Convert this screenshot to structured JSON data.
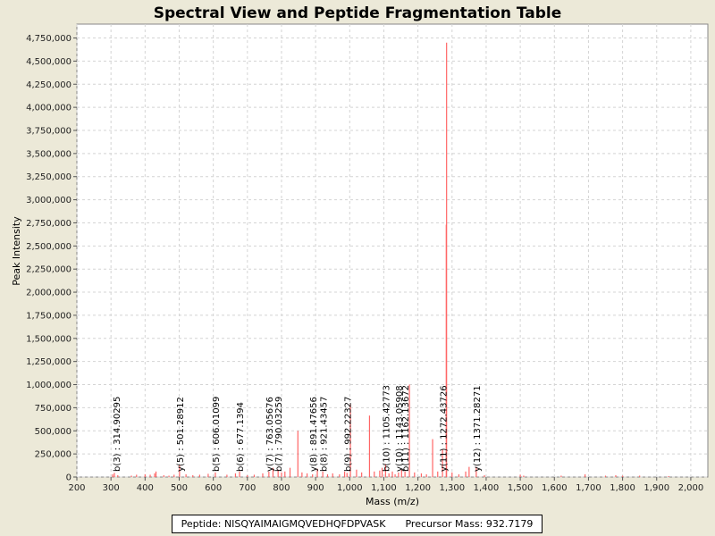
{
  "chart_data": {
    "type": "bar",
    "title": "Spectral View and Peptide Fragmentation Table",
    "xlabel": "Mass (m/z)",
    "ylabel": "Peak Intensity",
    "xlim": [
      200,
      2050
    ],
    "ylim": [
      0,
      4900000
    ],
    "xticks": [
      200,
      300,
      400,
      500,
      600,
      700,
      800,
      900,
      1000,
      1100,
      1200,
      1300,
      1400,
      1500,
      1600,
      1700,
      1800,
      1900,
      2000
    ],
    "xtick_labels": [
      "200",
      "300",
      "400",
      "500",
      "600",
      "700",
      "800",
      "900",
      "1,000",
      "1,100",
      "1,200",
      "1,300",
      "1,400",
      "1,500",
      "1,600",
      "1,700",
      "1,800",
      "1,900",
      "2,000"
    ],
    "yticks": [
      0,
      250000,
      500000,
      750000,
      1000000,
      1250000,
      1500000,
      1750000,
      2000000,
      2250000,
      2500000,
      2750000,
      3000000,
      3250000,
      3500000,
      3750000,
      4000000,
      4250000,
      4500000,
      4750000
    ],
    "ytick_labels": [
      "0",
      "250,000",
      "500,000",
      "750,000",
      "1,000,000",
      "1,250,000",
      "1,500,000",
      "1,750,000",
      "2,000,000",
      "2,250,000",
      "2,500,000",
      "2,750,000",
      "3,000,000",
      "3,250,000",
      "3,500,000",
      "3,750,000",
      "4,000,000",
      "4,250,000",
      "4,500,000",
      "4,750,000"
    ],
    "grid": true,
    "peak_color": "#ff6666",
    "peaks": [
      {
        "x": 305,
        "y": 30000
      },
      {
        "x": 310,
        "y": 45000
      },
      {
        "x": 320,
        "y": 20000
      },
      {
        "x": 360,
        "y": 15000
      },
      {
        "x": 375,
        "y": 25000
      },
      {
        "x": 400,
        "y": 30000
      },
      {
        "x": 415,
        "y": 25000
      },
      {
        "x": 428,
        "y": 40000
      },
      {
        "x": 432,
        "y": 60000
      },
      {
        "x": 455,
        "y": 20000
      },
      {
        "x": 470,
        "y": 15000
      },
      {
        "x": 485,
        "y": 25000
      },
      {
        "x": 501,
        "y": 130000
      },
      {
        "x": 520,
        "y": 30000
      },
      {
        "x": 540,
        "y": 20000
      },
      {
        "x": 560,
        "y": 25000
      },
      {
        "x": 585,
        "y": 35000
      },
      {
        "x": 606,
        "y": 50000
      },
      {
        "x": 640,
        "y": 25000
      },
      {
        "x": 665,
        "y": 40000
      },
      {
        "x": 677,
        "y": 60000
      },
      {
        "x": 700,
        "y": 20000
      },
      {
        "x": 720,
        "y": 25000
      },
      {
        "x": 745,
        "y": 40000
      },
      {
        "x": 763,
        "y": 60000
      },
      {
        "x": 775,
        "y": 100000
      },
      {
        "x": 790,
        "y": 80000
      },
      {
        "x": 800,
        "y": 50000
      },
      {
        "x": 810,
        "y": 60000
      },
      {
        "x": 825,
        "y": 100000
      },
      {
        "x": 848,
        "y": 500000
      },
      {
        "x": 860,
        "y": 50000
      },
      {
        "x": 875,
        "y": 40000
      },
      {
        "x": 891,
        "y": 30000
      },
      {
        "x": 905,
        "y": 90000
      },
      {
        "x": 921,
        "y": 60000
      },
      {
        "x": 935,
        "y": 30000
      },
      {
        "x": 950,
        "y": 40000
      },
      {
        "x": 970,
        "y": 30000
      },
      {
        "x": 985,
        "y": 60000
      },
      {
        "x": 992,
        "y": 45000
      },
      {
        "x": 1002,
        "y": 790000
      },
      {
        "x": 1020,
        "y": 80000
      },
      {
        "x": 1035,
        "y": 50000
      },
      {
        "x": 1058,
        "y": 665000
      },
      {
        "x": 1072,
        "y": 60000
      },
      {
        "x": 1088,
        "y": 70000
      },
      {
        "x": 1095,
        "y": 100000
      },
      {
        "x": 1105,
        "y": 140000
      },
      {
        "x": 1115,
        "y": 40000
      },
      {
        "x": 1125,
        "y": 60000
      },
      {
        "x": 1133,
        "y": 30000
      },
      {
        "x": 1143,
        "y": 50000
      },
      {
        "x": 1152,
        "y": 80000
      },
      {
        "x": 1162,
        "y": 60000
      },
      {
        "x": 1175,
        "y": 1000000
      },
      {
        "x": 1190,
        "y": 50000
      },
      {
        "x": 1210,
        "y": 40000
      },
      {
        "x": 1225,
        "y": 30000
      },
      {
        "x": 1243,
        "y": 410000
      },
      {
        "x": 1258,
        "y": 60000
      },
      {
        "x": 1272,
        "y": 300000
      },
      {
        "x": 1283,
        "y": 2730000
      },
      {
        "x": 1284,
        "y": 4700000
      },
      {
        "x": 1300,
        "y": 50000
      },
      {
        "x": 1320,
        "y": 30000
      },
      {
        "x": 1340,
        "y": 60000
      },
      {
        "x": 1350,
        "y": 110000
      },
      {
        "x": 1371,
        "y": 110000
      },
      {
        "x": 1395,
        "y": 20000
      },
      {
        "x": 1500,
        "y": 25000
      },
      {
        "x": 1510,
        "y": 15000
      },
      {
        "x": 1620,
        "y": 15000
      },
      {
        "x": 1690,
        "y": 30000
      },
      {
        "x": 1750,
        "y": 15000
      },
      {
        "x": 1780,
        "y": 20000
      },
      {
        "x": 1800,
        "y": 15000
      },
      {
        "x": 1850,
        "y": 15000
      },
      {
        "x": 1935,
        "y": 10000
      }
    ],
    "annotations": [
      {
        "x": 314.90295,
        "y": 30000,
        "text": "b(3) : 314.90295"
      },
      {
        "x": 501.28912,
        "y": 130000,
        "text": "y(5) : 501.28912"
      },
      {
        "x": 606.01099,
        "y": 50000,
        "text": "b(5) : 606.01099"
      },
      {
        "x": 677.1394,
        "y": 60000,
        "text": "b(6) : 677.1394"
      },
      {
        "x": 763.05676,
        "y": 60000,
        "text": "y(7) : 763.05676"
      },
      {
        "x": 790.03259,
        "y": 80000,
        "text": "b(7) : 790.03259"
      },
      {
        "x": 891.47656,
        "y": 30000,
        "text": "y(8) : 891.47656"
      },
      {
        "x": 921.43457,
        "y": 60000,
        "text": "b(8) : 921.43457"
      },
      {
        "x": 992.22327,
        "y": 45000,
        "text": "b(9) : 992.22327"
      },
      {
        "x": 1105.42773,
        "y": 140000,
        "text": "b(10) : 1105.42773"
      },
      {
        "x": 1143.05908,
        "y": 50000,
        "text": "y(10) : 1143.05908"
      },
      {
        "x": 1162.13672,
        "y": 60000,
        "text": "b(11) : 1162.13672"
      },
      {
        "x": 1272.43726,
        "y": 300000,
        "text": "y(11) : 1272.43726"
      },
      {
        "x": 1371.28271,
        "y": 110000,
        "text": "y(12) : 1371.28271"
      }
    ]
  },
  "info": {
    "peptide": "Peptide: NISQYAIMAIGMQVEDHQFDPVASK",
    "precursor": "Precursor Mass: 932.7179"
  }
}
